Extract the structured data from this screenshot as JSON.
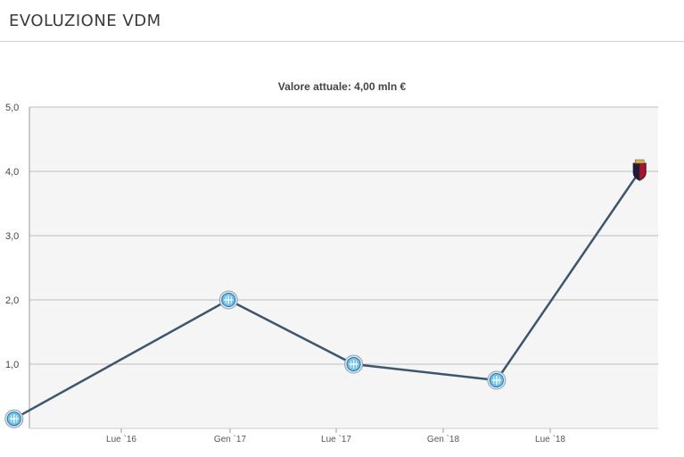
{
  "header": {
    "title": "EVOLUZIONE VDM"
  },
  "chart_data": {
    "type": "line",
    "title": "Valore attuale: 4,00 mln €",
    "xlabel": "",
    "ylabel": "",
    "ylim": [
      0,
      5
    ],
    "y_ticks": [
      "5,0",
      "4,0",
      "3,0",
      "2,0",
      "1,0"
    ],
    "x_ticks": [
      "Lue `16",
      "Gen `17",
      "Lue `17",
      "Gen `18",
      "Lue `18"
    ],
    "grid": true,
    "colors": {
      "line": "#3d5670",
      "grid": "#bfbfbf",
      "plot_bg": "#f5f5f5",
      "club_badge": "#1a6fb3",
      "genoa_red": "#b0122a"
    },
    "points": [
      {
        "x": "2016-01",
        "y": 0.15,
        "marker": "club-crest-icon"
      },
      {
        "x": "2017-01",
        "y": 2.0,
        "marker": "club-crest-icon"
      },
      {
        "x": "2017-08",
        "y": 1.0,
        "marker": "club-crest-icon"
      },
      {
        "x": "2018-04",
        "y": 0.75,
        "marker": "club-crest-icon"
      },
      {
        "x": "2018-12",
        "y": 4.0,
        "marker": "genoa-crest-icon"
      }
    ]
  }
}
